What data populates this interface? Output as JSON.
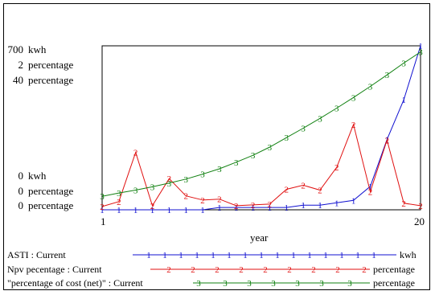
{
  "chart_data": {
    "type": "line",
    "xlabel": "year",
    "x_ticks": [
      "1",
      "20"
    ],
    "xlim": [
      1,
      20
    ],
    "axis_groups": [
      {
        "top": "700",
        "bottom": "0",
        "unit": "kwh",
        "series": "ASTI : Current"
      },
      {
        "top": "2",
        "bottom": "0",
        "unit": "percentage",
        "series": "Npv pecentage : Current"
      },
      {
        "top": "40",
        "bottom": "0",
        "unit": "percentage",
        "series": "\"percentage of cost (net)\" : Current"
      }
    ],
    "series": [
      {
        "name": "ASTI : Current",
        "unit": "kwh",
        "marker": "1",
        "color": "#1010d0",
        "ylim": [
          0,
          700
        ],
        "x": [
          1,
          2,
          3,
          4,
          5,
          6,
          7,
          8,
          9,
          10,
          11,
          12,
          13,
          14,
          15,
          16,
          17,
          18,
          19,
          20
        ],
        "y": [
          0,
          0,
          0,
          0,
          0,
          0,
          0,
          10,
          10,
          10,
          10,
          10,
          20,
          20,
          30,
          40,
          100,
          300,
          470,
          700
        ]
      },
      {
        "name": "Npv pecentage : Current",
        "unit": "percentage",
        "marker": "2",
        "color": "#e01010",
        "ylim": [
          0,
          2
        ],
        "x": [
          1,
          2,
          3,
          4,
          5,
          6,
          7,
          8,
          9,
          10,
          11,
          12,
          13,
          14,
          15,
          16,
          17,
          18,
          19,
          20
        ],
        "y": [
          0.04,
          0.1,
          0.7,
          0.05,
          0.38,
          0.17,
          0.12,
          0.13,
          0.05,
          0.06,
          0.07,
          0.25,
          0.3,
          0.24,
          0.52,
          1.04,
          0.22,
          0.85,
          0.08,
          0.05
        ]
      },
      {
        "name": "\"percentage of cost (net)\" : Current",
        "unit": "percentage",
        "marker": "3",
        "color": "#108010",
        "ylim": [
          0,
          40
        ],
        "x": [
          1,
          2,
          3,
          4,
          5,
          6,
          7,
          8,
          9,
          10,
          11,
          12,
          13,
          14,
          15,
          16,
          17,
          18,
          19,
          20
        ],
        "y": [
          3.3,
          4.1,
          4.8,
          5.6,
          6.5,
          7.5,
          8.7,
          10.0,
          11.6,
          13.3,
          15.3,
          17.6,
          19.9,
          22.3,
          24.8,
          27.4,
          30.1,
          32.9,
          35.8,
          38.5
        ]
      }
    ],
    "grid": false,
    "legend_placement": "bottom"
  }
}
